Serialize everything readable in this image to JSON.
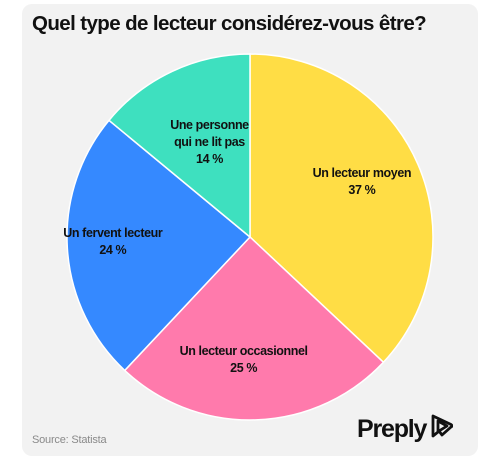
{
  "title": "Quel type de lecteur considérez-vous être?",
  "source": "Source: Statista",
  "brand": {
    "name": "Preply",
    "icon": "preply-logo-icon"
  },
  "colors": {
    "background": "#f2f2f2",
    "text": "#111111",
    "source_text": "#8a8a8a"
  },
  "chart_data": {
    "type": "pie",
    "start_angle_deg": 0,
    "direction": "clockwise",
    "slices": [
      {
        "label_lines": [
          "Un lecteur moyen"
        ],
        "label": "Un lecteur moyen",
        "value": 37,
        "value_label": "37 %",
        "color": "#ffdd45"
      },
      {
        "label_lines": [
          "Un lecteur occasionnel"
        ],
        "label": "Un lecteur occasionnel",
        "value": 25,
        "value_label": "25 %",
        "color": "#ff7aac"
      },
      {
        "label_lines": [
          "Un fervent lecteur"
        ],
        "label": "Un fervent lecteur",
        "value": 24,
        "value_label": "24 %",
        "color": "#3589ff"
      },
      {
        "label_lines": [
          "Une personne",
          "qui ne lit pas"
        ],
        "label": "Une personne qui ne lit pas",
        "value": 14,
        "value_label": "14 %",
        "color": "#3ee0bf"
      }
    ]
  }
}
